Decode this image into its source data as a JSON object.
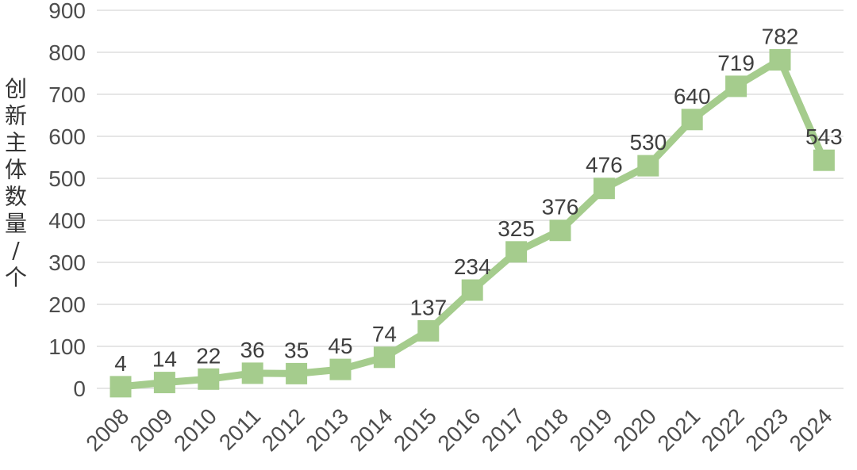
{
  "chart_data": {
    "type": "line",
    "title": "",
    "xlabel": "",
    "ylabel": "创新主体数量/个",
    "categories": [
      "2008",
      "2009",
      "2010",
      "2011",
      "2012",
      "2013",
      "2014",
      "2015",
      "2016",
      "2017",
      "2018",
      "2019",
      "2020",
      "2021",
      "2022",
      "2023",
      "2024"
    ],
    "values": [
      4,
      14,
      22,
      36,
      35,
      45,
      74,
      137,
      234,
      325,
      376,
      476,
      530,
      640,
      719,
      782,
      543
    ],
    "ylim": [
      0,
      900
    ],
    "ytick_step": 100,
    "grid": true,
    "legend": false,
    "data_labels": true,
    "marker": "square",
    "colors": {
      "line": "#a5cc8d",
      "marker": "#a5cc8d",
      "grid": "#dedede",
      "tick_text": "#4d4d4d",
      "data_label_text": "#3f3f3f",
      "axis_title_text": "#333333"
    }
  }
}
